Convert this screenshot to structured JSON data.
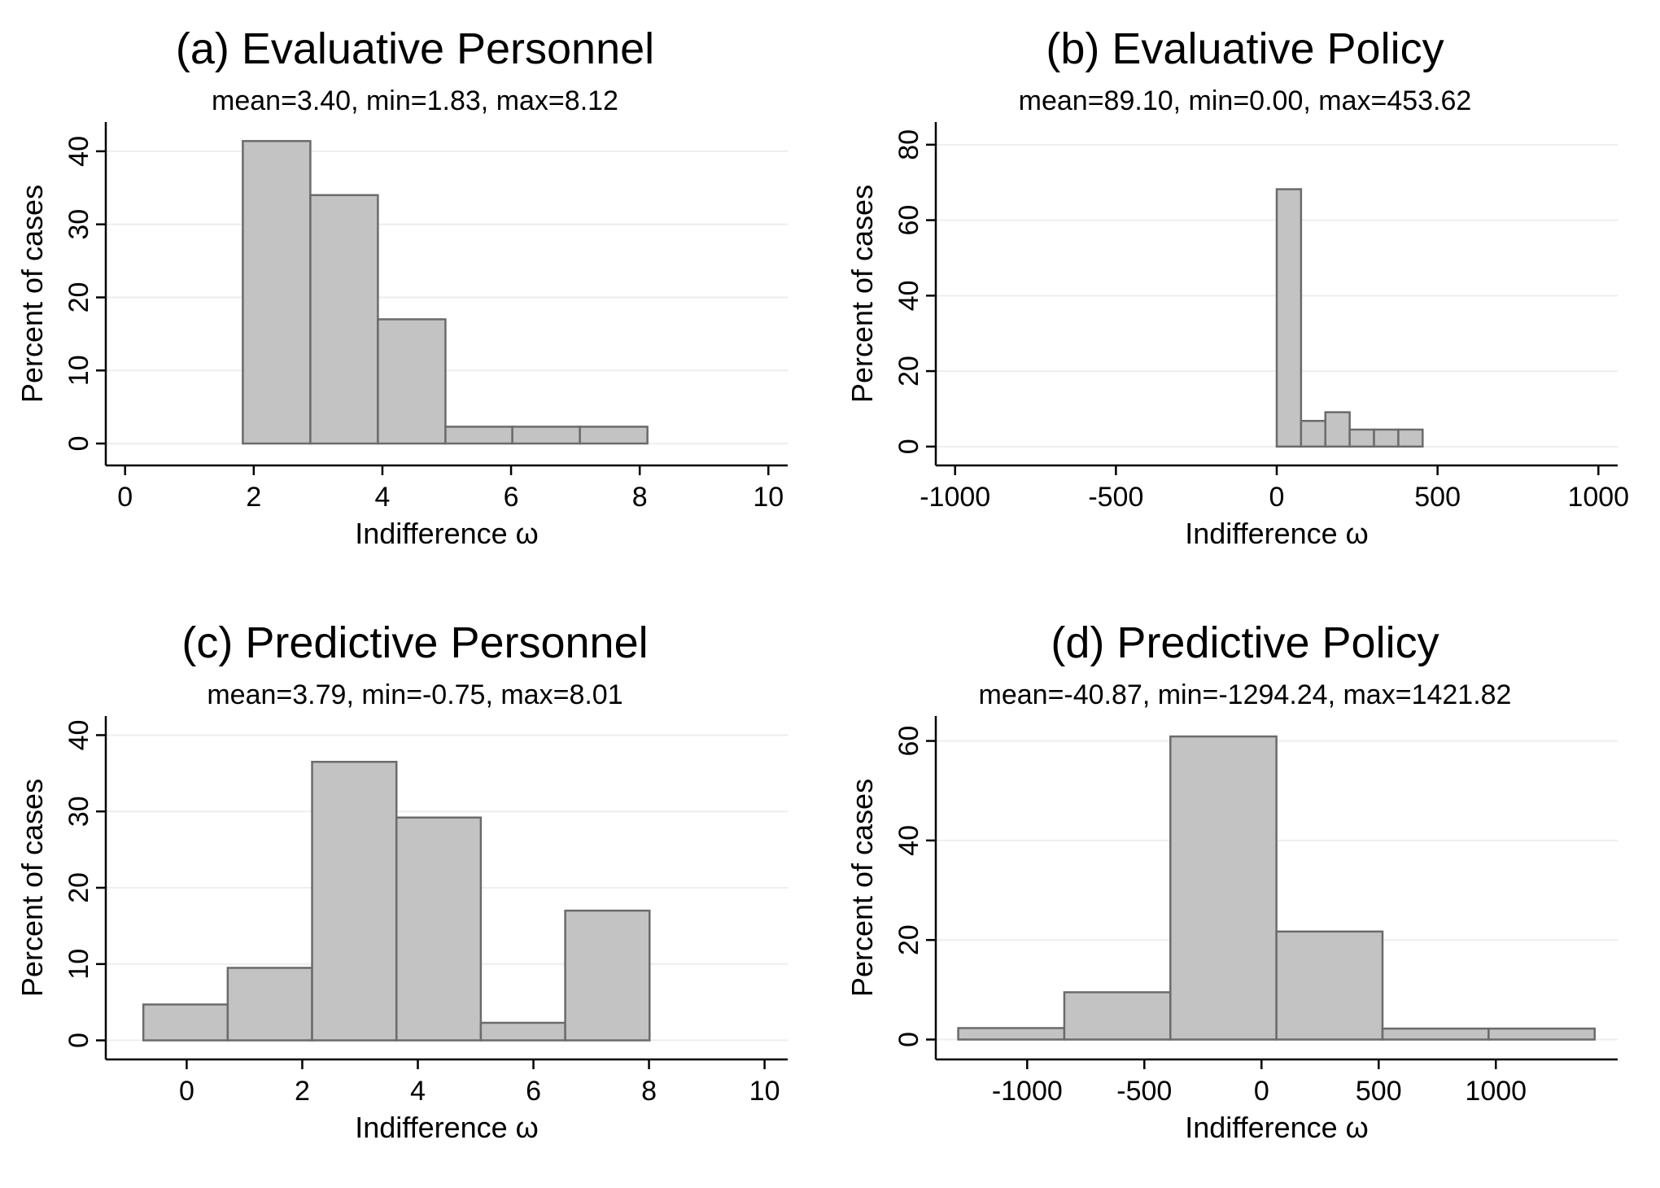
{
  "chart_data": [
    {
      "type": "bar",
      "title": "(a) Evaluative Personnel",
      "subtitle": "mean=3.40, min=1.83, max=8.12",
      "xlabel": "Indifference ω",
      "ylabel": "Percent of cases",
      "xlim": [
        -0.3,
        10.3
      ],
      "ylim": [
        -3,
        44
      ],
      "xticks": [
        0,
        2,
        4,
        6,
        8,
        10
      ],
      "xtick_labels": [
        "0",
        "2",
        "4",
        "6",
        "8",
        "10"
      ],
      "yticks": [
        0,
        10,
        20,
        30,
        40
      ],
      "ytick_labels": [
        "0",
        "10",
        "20",
        "30",
        "40"
      ],
      "grid": true,
      "bins": [
        {
          "x0": 1.83,
          "x1": 2.88,
          "value": 41.4
        },
        {
          "x0": 2.88,
          "x1": 3.93,
          "value": 34.0
        },
        {
          "x0": 3.93,
          "x1": 4.98,
          "value": 17.0
        },
        {
          "x0": 4.98,
          "x1": 6.02,
          "value": 2.3
        },
        {
          "x0": 6.02,
          "x1": 7.07,
          "value": 2.3
        },
        {
          "x0": 7.07,
          "x1": 8.12,
          "value": 2.3
        }
      ]
    },
    {
      "type": "bar",
      "title": "(b) Evaluative Policy",
      "subtitle": "mean=89.10, min=0.00, max=453.62",
      "xlabel": "Indifference ω",
      "ylabel": "Percent of cases",
      "xlim": [
        -1060,
        1060
      ],
      "ylim": [
        -5,
        86
      ],
      "xticks": [
        -1000,
        -500,
        0,
        500,
        1000
      ],
      "xtick_labels": [
        "-1000",
        "-500",
        "0",
        "500",
        "1000"
      ],
      "yticks": [
        0,
        20,
        40,
        60,
        80
      ],
      "ytick_labels": [
        "0",
        "20",
        "40",
        "60",
        "80"
      ],
      "grid": true,
      "bins": [
        {
          "x0": 0,
          "x1": 75.6,
          "value": 68.2
        },
        {
          "x0": 75.6,
          "x1": 151.2,
          "value": 6.8
        },
        {
          "x0": 151.2,
          "x1": 226.8,
          "value": 9.1
        },
        {
          "x0": 226.8,
          "x1": 302.4,
          "value": 4.5
        },
        {
          "x0": 302.4,
          "x1": 378.0,
          "value": 4.5
        },
        {
          "x0": 378.0,
          "x1": 453.62,
          "value": 4.5
        }
      ]
    },
    {
      "type": "bar",
      "title": "(c) Predictive Personnel",
      "subtitle": "mean=3.79, min=-0.75, max=8.01",
      "xlabel": "Indifference ω",
      "ylabel": "Percent of cases",
      "xlim": [
        -1.4,
        10.4
      ],
      "ylim": [
        -2.5,
        42.5
      ],
      "xticks": [
        0,
        2,
        4,
        6,
        8,
        10
      ],
      "xtick_labels": [
        "0",
        "2",
        "4",
        "6",
        "8",
        "10"
      ],
      "yticks": [
        0,
        10,
        20,
        30,
        40
      ],
      "ytick_labels": [
        "0",
        "10",
        "20",
        "30",
        "40"
      ],
      "grid": true,
      "bins": [
        {
          "x0": -0.75,
          "x1": 0.71,
          "value": 4.7
        },
        {
          "x0": 0.71,
          "x1": 2.17,
          "value": 9.5
        },
        {
          "x0": 2.17,
          "x1": 3.63,
          "value": 36.5
        },
        {
          "x0": 3.63,
          "x1": 5.09,
          "value": 29.2
        },
        {
          "x0": 5.09,
          "x1": 6.55,
          "value": 2.3
        },
        {
          "x0": 6.55,
          "x1": 8.01,
          "value": 17.0
        }
      ]
    },
    {
      "type": "bar",
      "title": "(d) Predictive Policy",
      "subtitle": "mean=-40.87, min=-1294.24, max=1421.82",
      "xlabel": "Indifference ω",
      "ylabel": "Percent of cases",
      "xlim": [
        -1390,
        1520
      ],
      "ylim": [
        -4,
        65
      ],
      "xticks": [
        -1000,
        -500,
        0,
        500,
        1000
      ],
      "xtick_labels": [
        "-1000",
        "-500",
        "0",
        "500",
        "1000"
      ],
      "yticks": [
        0,
        20,
        40,
        60
      ],
      "ytick_labels": [
        "0",
        "20",
        "40",
        "60"
      ],
      "grid": true,
      "bins": [
        {
          "x0": -1294.24,
          "x1": -841.57,
          "value": 2.3
        },
        {
          "x0": -841.57,
          "x1": -388.89,
          "value": 9.5
        },
        {
          "x0": -388.89,
          "x1": 63.79,
          "value": 60.9
        },
        {
          "x0": 63.79,
          "x1": 516.47,
          "value": 21.7
        },
        {
          "x0": 516.47,
          "x1": 969.14,
          "value": 2.2
        },
        {
          "x0": 969.14,
          "x1": 1421.82,
          "value": 2.2
        }
      ]
    }
  ]
}
